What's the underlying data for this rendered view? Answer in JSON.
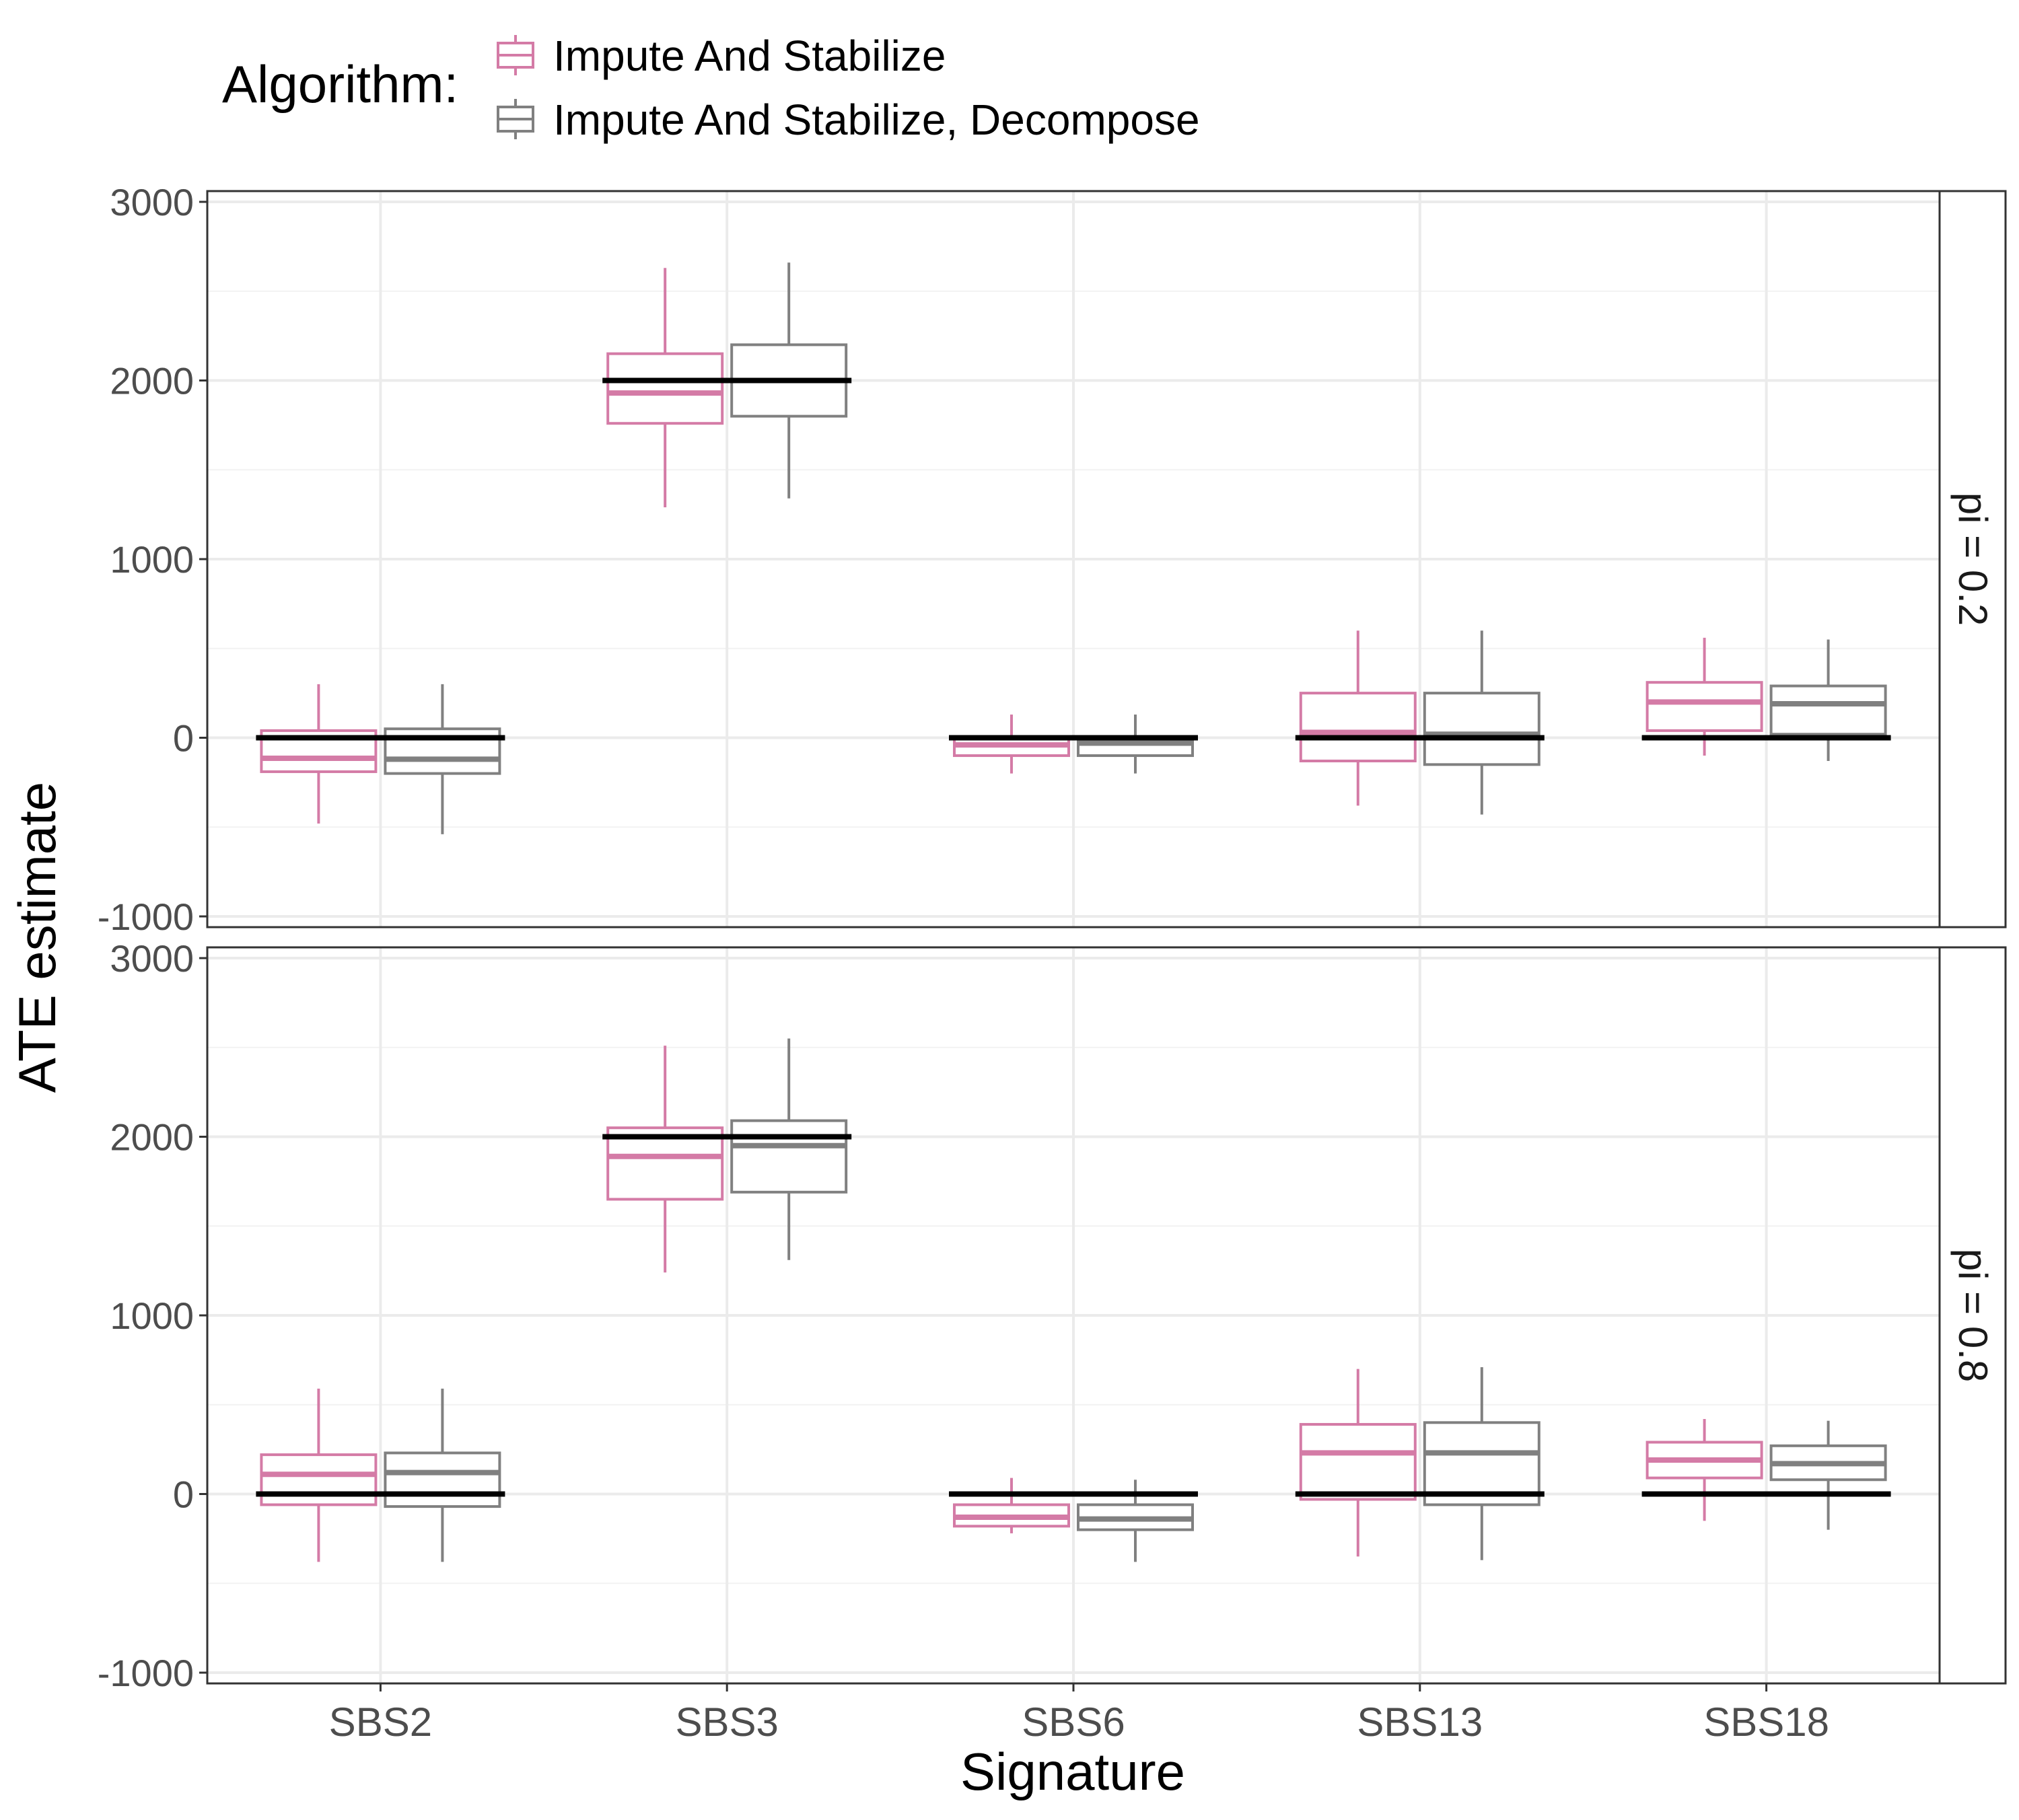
{
  "chart_data": {
    "type": "box",
    "xlabel": "Signature",
    "ylabel": "ATE estimate",
    "ylim": [
      -1000,
      3000
    ],
    "yticks": [
      -1000,
      0,
      1000,
      2000,
      3000
    ],
    "grid": true,
    "categories": [
      "SBS2",
      "SBS3",
      "SBS6",
      "SBS13",
      "SBS18"
    ],
    "legend": {
      "title": "Algorithm:",
      "placement": "top",
      "entries": [
        {
          "name": "Impute And Stabilize",
          "color": "#d47ba6"
        },
        {
          "name": "Impute And Stabilize, Decompose",
          "color": "#808080"
        }
      ]
    },
    "true_values": [
      0,
      2000,
      0,
      0,
      0
    ],
    "true_value_color": "#000000",
    "panels": [
      {
        "label": "pi = 0.2",
        "series": [
          {
            "name": "Impute And Stabilize",
            "boxes": [
              {
                "min": -480,
                "q1": -190,
                "median": -115,
                "q3": 40,
                "max": 300
              },
              {
                "min": 1290,
                "q1": 1760,
                "median": 1930,
                "q3": 2150,
                "max": 2630
              },
              {
                "min": -200,
                "q1": -100,
                "median": -40,
                "q3": 0,
                "max": 130
              },
              {
                "min": -380,
                "q1": -130,
                "median": 30,
                "q3": 250,
                "max": 600
              },
              {
                "min": -100,
                "q1": 40,
                "median": 200,
                "q3": 310,
                "max": 560
              }
            ]
          },
          {
            "name": "Impute And Stabilize, Decompose",
            "boxes": [
              {
                "min": -540,
                "q1": -200,
                "median": -120,
                "q3": 50,
                "max": 300
              },
              {
                "min": 1340,
                "q1": 1800,
                "median": 2000,
                "q3": 2200,
                "max": 2660
              },
              {
                "min": -200,
                "q1": -100,
                "median": -30,
                "q3": 0,
                "max": 130
              },
              {
                "min": -430,
                "q1": -150,
                "median": 20,
                "q3": 250,
                "max": 600
              },
              {
                "min": -130,
                "q1": 20,
                "median": 190,
                "q3": 290,
                "max": 550
              }
            ]
          }
        ]
      },
      {
        "label": "pi = 0.8",
        "series": [
          {
            "name": "Impute And Stabilize",
            "boxes": [
              {
                "min": -380,
                "q1": -60,
                "median": 110,
                "q3": 220,
                "max": 590
              },
              {
                "min": 1240,
                "q1": 1650,
                "median": 1890,
                "q3": 2050,
                "max": 2510
              },
              {
                "min": -220,
                "q1": -180,
                "median": -130,
                "q3": -60,
                "max": 90
              },
              {
                "min": -350,
                "q1": -30,
                "median": 230,
                "q3": 390,
                "max": 700
              },
              {
                "min": -150,
                "q1": 90,
                "median": 190,
                "q3": 290,
                "max": 420
              }
            ]
          },
          {
            "name": "Impute And Stabilize, Decompose",
            "boxes": [
              {
                "min": -380,
                "q1": -70,
                "median": 120,
                "q3": 230,
                "max": 590
              },
              {
                "min": 1310,
                "q1": 1690,
                "median": 1950,
                "q3": 2090,
                "max": 2550
              },
              {
                "min": -380,
                "q1": -200,
                "median": -140,
                "q3": -60,
                "max": 80
              },
              {
                "min": -370,
                "q1": -60,
                "median": 230,
                "q3": 400,
                "max": 710
              },
              {
                "min": -200,
                "q1": 80,
                "median": 170,
                "q3": 270,
                "max": 410
              }
            ]
          }
        ]
      }
    ]
  }
}
